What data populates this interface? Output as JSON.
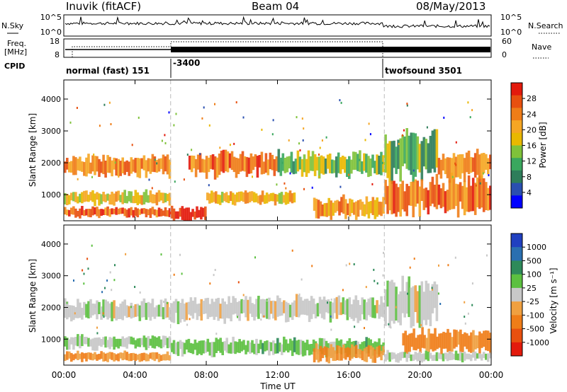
{
  "header": {
    "station": "Inuvik (fitACF)",
    "beam": "Beam 04",
    "date": "08/May/2013"
  },
  "noise_panel": {
    "left_label": "N.Sky",
    "right_label": "N.Search",
    "left_ticks": [
      "10^5",
      "10^0"
    ],
    "right_ticks": [
      "10^5",
      "10^0"
    ]
  },
  "freq_panel": {
    "left_label_1": "Freq.",
    "left_label_2": "[MHz]",
    "right_label": "Nave",
    "left_ticks": [
      "18",
      "8"
    ],
    "right_ticks": [
      "60",
      "0"
    ]
  },
  "cpid": {
    "label": "CPID",
    "segments": [
      {
        "start_hour": 0,
        "text": "normal (fast) 151"
      },
      {
        "start_hour": 6,
        "text": "-3400"
      },
      {
        "start_hour": 18,
        "text": "twofsound 3501"
      }
    ]
  },
  "x_axis": {
    "label": "Time UT",
    "ticks": [
      "00:00",
      "04:00",
      "08:00",
      "12:00",
      "16:00",
      "20:00",
      "00:00"
    ]
  },
  "power_panel": {
    "ylabel": "Slant Range [km]",
    "yticks": [
      "1000",
      "2000",
      "3000",
      "4000"
    ],
    "colorbar_label": "Power [dB]",
    "colorbar_ticks": [
      "4",
      "8",
      "12",
      "16",
      "20",
      "24",
      "28"
    ],
    "colors": [
      "#0000ff",
      "#2a4fb0",
      "#2e7d5a",
      "#3aa75e",
      "#7fc23a",
      "#e9b800",
      "#f5a623",
      "#ef7d18",
      "#e8500f",
      "#e31a0c"
    ]
  },
  "velocity_panel": {
    "ylabel": "Slant Range [km]",
    "yticks": [
      "1000",
      "2000",
      "3000",
      "4000"
    ],
    "colorbar_label": "Velocity [m s⁻¹]",
    "colorbar_ticks": [
      "1000",
      "500",
      "100",
      "25",
      "-25",
      "-100",
      "-500",
      "-1000"
    ],
    "colors": [
      "#2040c0",
      "#2a6fb0",
      "#2e8a5a",
      "#5cc040",
      "#c8c8c8",
      "#f0a040",
      "#ef7d18",
      "#e8500f",
      "#e31a0c"
    ]
  },
  "chart_data": [
    {
      "type": "heatmap",
      "title": "Power",
      "xlabel": "Time UT",
      "ylabel": "Slant Range [km]",
      "xlim": [
        0,
        24
      ],
      "ylim": [
        180,
        4600
      ],
      "colorbar": {
        "label": "Power [dB]",
        "range": [
          0,
          32
        ]
      },
      "bands": [
        {
          "t": [
            0.0,
            6.0
          ],
          "range_km": [
            1600,
            2200
          ],
          "value": 24
        },
        {
          "t": [
            0.0,
            6.0
          ],
          "range_km": [
            700,
            1100
          ],
          "value": 18
        },
        {
          "t": [
            0.0,
            6.0
          ],
          "range_km": [
            300,
            600
          ],
          "value": 26
        },
        {
          "t": [
            6.0,
            8.0
          ],
          "range_km": [
            180,
            600
          ],
          "value": 30
        },
        {
          "t": [
            7.0,
            12.0
          ],
          "range_km": [
            1600,
            2300
          ],
          "value": 26
        },
        {
          "t": [
            8.0,
            13.0
          ],
          "range_km": [
            700,
            1100
          ],
          "value": 20
        },
        {
          "t": [
            12.0,
            18.0
          ],
          "range_km": [
            1600,
            2300
          ],
          "value": 14
        },
        {
          "t": [
            14.0,
            18.0
          ],
          "range_km": [
            300,
            900
          ],
          "value": 22
        },
        {
          "t": [
            18.0,
            21.0
          ],
          "range_km": [
            1500,
            3000
          ],
          "value": 12
        },
        {
          "t": [
            18.0,
            24.0
          ],
          "range_km": [
            400,
            1500
          ],
          "value": 26
        },
        {
          "t": [
            21.0,
            24.0
          ],
          "range_km": [
            1500,
            2300
          ],
          "value": 22
        }
      ]
    },
    {
      "type": "heatmap",
      "title": "Velocity",
      "xlabel": "Time UT",
      "ylabel": "Slant Range [km]",
      "xlim": [
        0,
        24
      ],
      "ylim": [
        180,
        4600
      ],
      "colorbar": {
        "label": "Velocity [m s⁻¹]",
        "range": [
          -1000,
          1000
        ]
      },
      "bands": [
        {
          "t": [
            0.0,
            6.0
          ],
          "range_km": [
            1600,
            2200
          ],
          "value": 0
        },
        {
          "t": [
            0.0,
            6.0
          ],
          "range_km": [
            700,
            1100
          ],
          "value": 100
        },
        {
          "t": [
            0.0,
            6.0
          ],
          "range_km": [
            300,
            600
          ],
          "value": -300
        },
        {
          "t": [
            6.0,
            18.0
          ],
          "range_km": [
            1600,
            2300
          ],
          "value": 0
        },
        {
          "t": [
            6.0,
            18.0
          ],
          "range_km": [
            500,
            1000
          ],
          "value": 200
        },
        {
          "t": [
            14.0,
            18.0
          ],
          "range_km": [
            300,
            800
          ],
          "value": -300
        },
        {
          "t": [
            18.0,
            21.0
          ],
          "range_km": [
            1500,
            2900
          ],
          "value": 0
        },
        {
          "t": [
            19.0,
            24.0
          ],
          "range_km": [
            600,
            1300
          ],
          "value": -400
        },
        {
          "t": [
            18.0,
            24.0
          ],
          "range_km": [
            300,
            600
          ],
          "value": 50
        }
      ]
    }
  ]
}
